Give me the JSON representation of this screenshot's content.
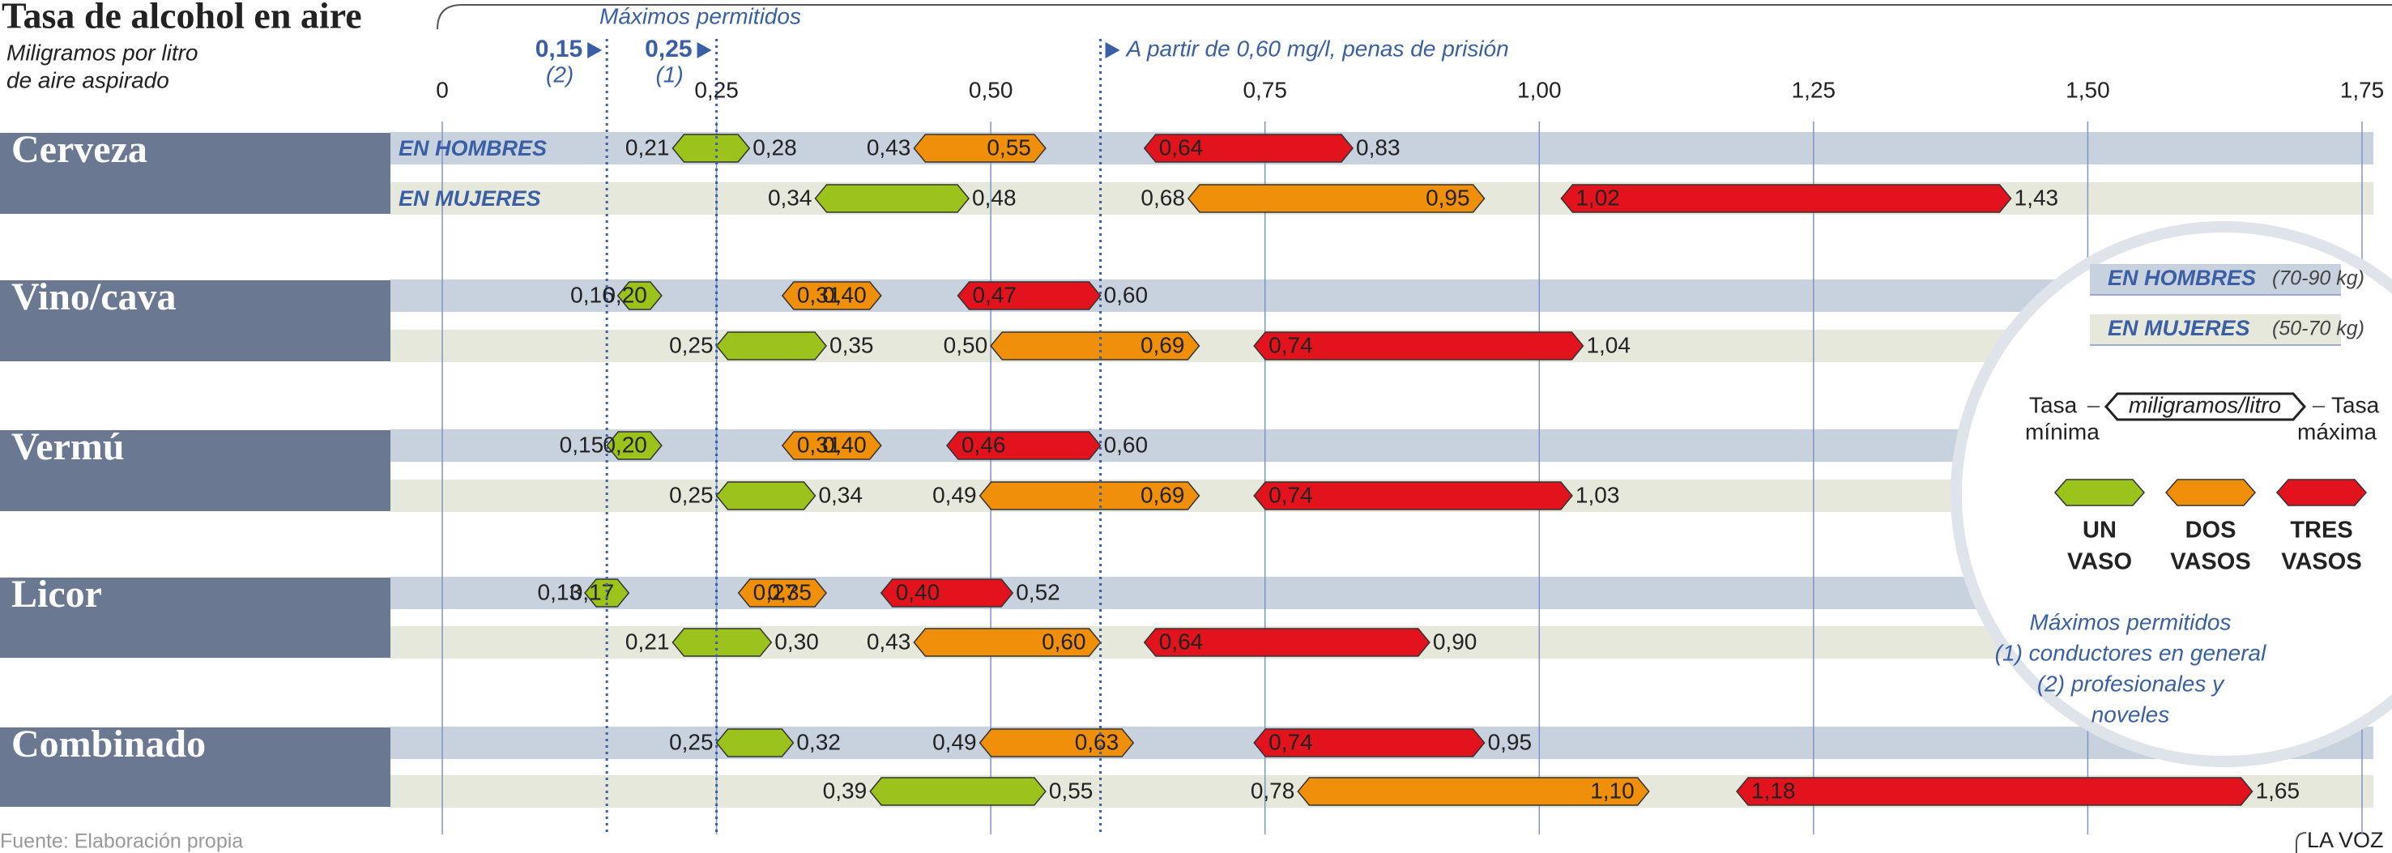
{
  "chart_data": {
    "type": "range_arrow",
    "title": "Tasa de alcohol en aire",
    "subtitle_lines": [
      "Miligramos por litro",
      "de aire aspirado"
    ],
    "xlim": [
      0,
      1.75
    ],
    "xticks": [
      0,
      {
        "value": 0.25,
        "label": "0,25"
      },
      {
        "value": 0.5,
        "label": "0,50"
      },
      {
        "value": 0.75,
        "label": "0,75"
      },
      {
        "value": 1.0,
        "label": "1,00"
      },
      {
        "value": 1.25,
        "label": "1,25"
      },
      {
        "value": 1.5,
        "label": "1,50"
      },
      {
        "value": 1.75,
        "label": "1,75"
      }
    ],
    "grid": true,
    "limits_title": "Máximos permitidos",
    "limits": [
      {
        "value": 0.15,
        "label": "0,15",
        "note": "(2)"
      },
      {
        "value": 0.25,
        "label": "0,25",
        "note": "(1)"
      }
    ],
    "prison": {
      "value": 0.6,
      "text": "A partir de 0,60 mg/l, penas de prisión"
    },
    "row_types": [
      {
        "label": "EN HOMBRES",
        "weight": "(70-90 kg)",
        "color": "#c8d1de"
      },
      {
        "label": "EN MUJERES",
        "weight": "(50-70 kg)",
        "color": "#e6e8dc"
      }
    ],
    "groups": [
      {
        "name": "Cerveza",
        "rows": [
          {
            "values": [
              0.21,
              0.28,
              0.43,
              0.55,
              0.64,
              0.83
            ],
            "value_labels": [
              "0,21",
              "0,28",
              "0,43",
              "0,55",
              "0,64",
              "0,83"
            ]
          },
          {
            "values": [
              0.34,
              0.48,
              0.68,
              0.95,
              1.02,
              1.43
            ],
            "value_labels": [
              "0,34",
              "0,48",
              "0,68",
              "0,95",
              "1,02",
              "1,43"
            ]
          }
        ]
      },
      {
        "name": "Vino/cava",
        "rows": [
          {
            "values": [
              0.16,
              0.2,
              0.31,
              0.4,
              0.47,
              0.6
            ],
            "value_labels": [
              "0,16",
              "0,20",
              "0,31",
              "0,40",
              "0,47",
              "0,60"
            ]
          },
          {
            "values": [
              0.25,
              0.35,
              0.5,
              0.69,
              0.74,
              1.04
            ],
            "value_labels": [
              "0,25",
              "0,35",
              "0,50",
              "0,69",
              "0,74",
              "1,04"
            ]
          }
        ]
      },
      {
        "name": "Vermú",
        "rows": [
          {
            "values": [
              0.15,
              0.2,
              0.31,
              0.4,
              0.46,
              0.6
            ],
            "value_labels": [
              "0,15",
              "0,20",
              "0,31",
              "0,40",
              "0,46",
              "0,60"
            ]
          },
          {
            "values": [
              0.25,
              0.34,
              0.49,
              0.69,
              0.74,
              1.03
            ],
            "value_labels": [
              "0,25",
              "0,34",
              "0,49",
              "0,69",
              "0,74",
              "1,03"
            ]
          }
        ]
      },
      {
        "name": "Licor",
        "rows": [
          {
            "values": [
              0.13,
              0.17,
              0.27,
              0.35,
              0.4,
              0.52
            ],
            "value_labels": [
              "0,13",
              "0,17",
              "0,27",
              "0,35",
              "0,40",
              "0,52"
            ]
          },
          {
            "values": [
              0.21,
              0.3,
              0.43,
              0.6,
              0.64,
              0.9
            ],
            "value_labels": [
              "0,21",
              "0,30",
              "0,43",
              "0,60",
              "0,64",
              "0,90"
            ]
          }
        ]
      },
      {
        "name": "Combinado",
        "rows": [
          {
            "values": [
              0.25,
              0.32,
              0.49,
              0.63,
              0.74,
              0.95
            ],
            "value_labels": [
              "0,25",
              "0,32",
              "0,49",
              "0,63",
              "0,74",
              "0,95"
            ]
          },
          {
            "values": [
              0.39,
              0.55,
              0.78,
              1.1,
              1.18,
              1.65
            ],
            "value_labels": [
              "0,39",
              "0,55",
              "0,78",
              "1,10",
              "1,18",
              "1,65"
            ]
          }
        ]
      }
    ],
    "legend": {
      "min_lines": [
        "Tasa",
        "mínima"
      ],
      "unit": "miligramos/litro",
      "max_lines": [
        "Tasa",
        "máxima"
      ],
      "items": [
        {
          "label_lines": [
            "UN",
            "VASO"
          ],
          "color": "#9bc31c"
        },
        {
          "label_lines": [
            "DOS",
            "VASOS"
          ],
          "color": "#f0900a"
        },
        {
          "label_lines": [
            "TRES",
            "VASOS"
          ],
          "color": "#e2131c"
        }
      ],
      "notes": [
        "Máximos permitidos",
        "(1) conductores en general",
        "(2) profesionales y",
        "noveles"
      ]
    },
    "source": "Fuente: Elaboración propia",
    "brand": "LA VOZ"
  }
}
